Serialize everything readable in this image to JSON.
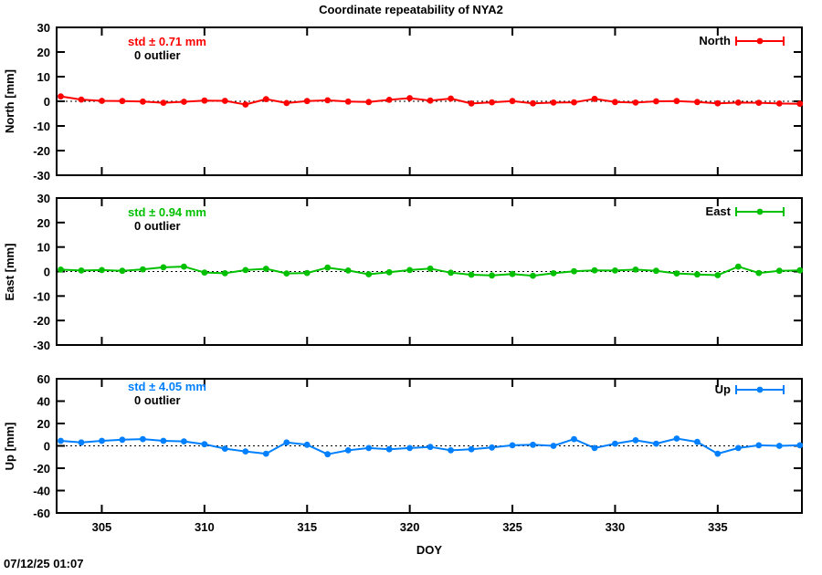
{
  "title": "Coordinate repeatability of NYA2",
  "timestamp": "07/12/25 01:07",
  "xlabel": "DOY",
  "chart_data": {
    "type": "line",
    "x_label": "DOY",
    "x": [
      303,
      304,
      305,
      306,
      307,
      308,
      309,
      310,
      311,
      312,
      313,
      314,
      315,
      316,
      317,
      318,
      319,
      320,
      321,
      322,
      323,
      324,
      325,
      326,
      327,
      328,
      329,
      330,
      331,
      332,
      333,
      334,
      335,
      336,
      337,
      338,
      339
    ],
    "x_ticks": [
      305,
      310,
      315,
      320,
      325,
      330,
      335
    ],
    "xlim": [
      302.8,
      339.1
    ],
    "grid": "dotted zero line only, ticks mirrored on all borders",
    "legend_position": "top-right inside each panel",
    "marker": "filled circle with errorbar legend sample",
    "panels": [
      {
        "name": "North",
        "ylabel": "North [mm]",
        "std_label": "std ± 0.71 mm",
        "outlier_label": "0 outlier",
        "legend": "North",
        "color": "#ff0000",
        "ylim": [
          -30,
          30
        ],
        "y_ticks": [
          30,
          20,
          10,
          0,
          -10,
          -20,
          -30
        ],
        "values": [
          2.0,
          0.7,
          0.2,
          0.1,
          -0.1,
          -0.6,
          -0.2,
          0.3,
          0.2,
          -1.3,
          0.9,
          -0.7,
          0.1,
          0.4,
          -0.1,
          -0.3,
          0.6,
          1.3,
          0.3,
          1.1,
          -0.9,
          -0.4,
          0.1,
          -0.8,
          -0.5,
          -0.4,
          1.0,
          -0.3,
          -0.5,
          0.0,
          0.1,
          -0.3,
          -0.8,
          -0.5,
          -0.6,
          -0.9,
          -1.0
        ]
      },
      {
        "name": "East",
        "ylabel": "East [mm]",
        "std_label": "std ± 0.94 mm",
        "outlier_label": "0 outlier",
        "legend": "East",
        "color": "#00c000",
        "ylim": [
          -30,
          30
        ],
        "y_ticks": [
          30,
          20,
          10,
          0,
          -10,
          -20,
          -30
        ],
        "values": [
          0.8,
          0.4,
          0.6,
          0.3,
          0.9,
          1.7,
          2.0,
          -0.4,
          -0.7,
          0.6,
          1.1,
          -0.8,
          -0.6,
          1.6,
          0.4,
          -1.1,
          -0.3,
          0.6,
          1.2,
          -0.5,
          -1.3,
          -1.6,
          -1.0,
          -1.7,
          -0.7,
          0.1,
          0.5,
          0.4,
          0.8,
          0.3,
          -0.8,
          -1.2,
          -1.5,
          2.0,
          -0.6,
          0.3,
          0.5
        ]
      },
      {
        "name": "Up",
        "ylabel": "Up [mm]",
        "std_label": "std ± 4.05 mm",
        "outlier_label": "0 outlier",
        "legend": "Up",
        "color": "#0080ff",
        "ylim": [
          -60,
          60
        ],
        "y_ticks": [
          60,
          40,
          20,
          0,
          -20,
          -40,
          -60
        ],
        "values": [
          4.5,
          3.0,
          4.5,
          5.5,
          6.0,
          4.5,
          4.0,
          1.5,
          -2.5,
          -5.0,
          -7.0,
          3.0,
          1.0,
          -7.5,
          -4.0,
          -2.0,
          -3.0,
          -2.0,
          -1.0,
          -4.0,
          -3.0,
          -1.5,
          0.5,
          1.0,
          0.0,
          6.0,
          -2.0,
          2.0,
          5.0,
          2.0,
          6.5,
          3.5,
          -7.0,
          -2.0,
          0.5,
          0.0,
          0.5
        ]
      }
    ]
  }
}
